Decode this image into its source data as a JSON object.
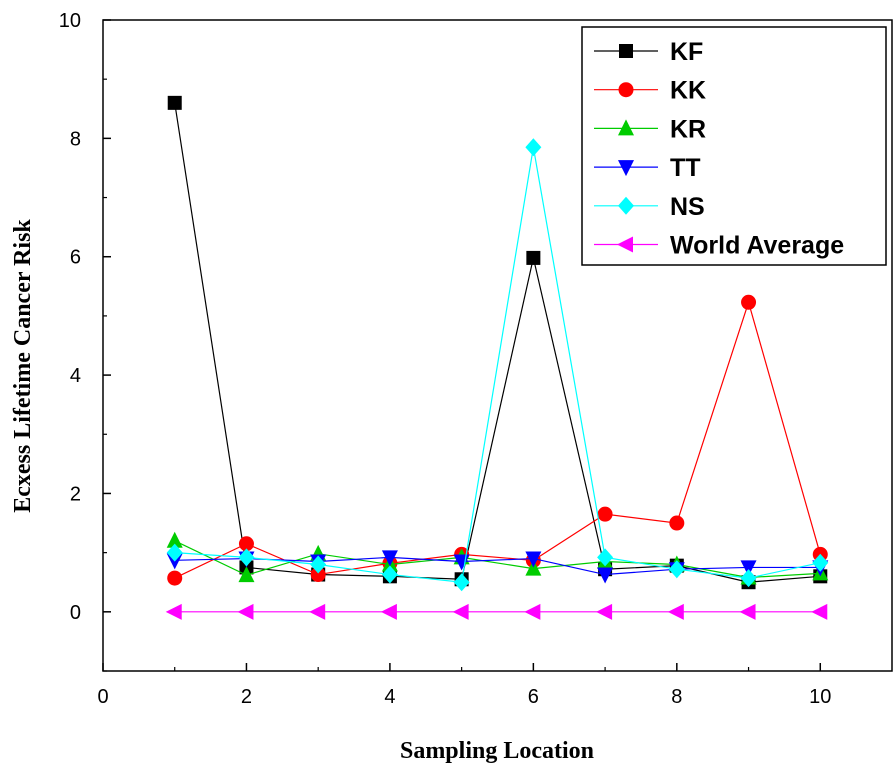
{
  "chart_data": {
    "type": "line",
    "xlabel": "Sampling Location",
    "ylabel": "Ecxess Lifetime Cancer Risk",
    "xlim": [
      0,
      11
    ],
    "ylim": [
      -1,
      10
    ],
    "xticks": [
      0,
      2,
      4,
      6,
      8,
      10
    ],
    "yticks": [
      0,
      2,
      4,
      6,
      8,
      10
    ],
    "grid": false,
    "legend_position": "top-right",
    "x": [
      1,
      2,
      3,
      4,
      5,
      6,
      7,
      8,
      9,
      10
    ],
    "series": [
      {
        "name": "KF",
        "color": "#000000",
        "marker": "square",
        "values": [
          8.6,
          0.75,
          0.63,
          0.6,
          0.55,
          5.98,
          0.72,
          0.78,
          0.5,
          0.6
        ]
      },
      {
        "name": "KK",
        "color": "#ff0000",
        "marker": "circle",
        "values": [
          0.57,
          1.15,
          0.63,
          0.82,
          0.97,
          0.87,
          1.65,
          1.5,
          5.23,
          0.97
        ]
      },
      {
        "name": "KR",
        "color": "#00cc00",
        "marker": "triangle-up",
        "values": [
          1.2,
          0.62,
          0.98,
          0.8,
          0.92,
          0.73,
          0.85,
          0.8,
          0.58,
          0.65
        ]
      },
      {
        "name": "TT",
        "color": "#0000ff",
        "marker": "triangle-down",
        "values": [
          0.87,
          0.9,
          0.85,
          0.92,
          0.85,
          0.9,
          0.63,
          0.72,
          0.75,
          0.75
        ]
      },
      {
        "name": "NS",
        "color": "#00ffff",
        "marker": "diamond",
        "values": [
          1.0,
          0.92,
          0.8,
          0.63,
          0.5,
          7.85,
          0.92,
          0.72,
          0.57,
          0.83
        ]
      },
      {
        "name": "World Average",
        "color": "#ff00ff",
        "marker": "triangle-left",
        "values": [
          0,
          0,
          0,
          0,
          0,
          0,
          0,
          0,
          0,
          0
        ]
      }
    ]
  }
}
